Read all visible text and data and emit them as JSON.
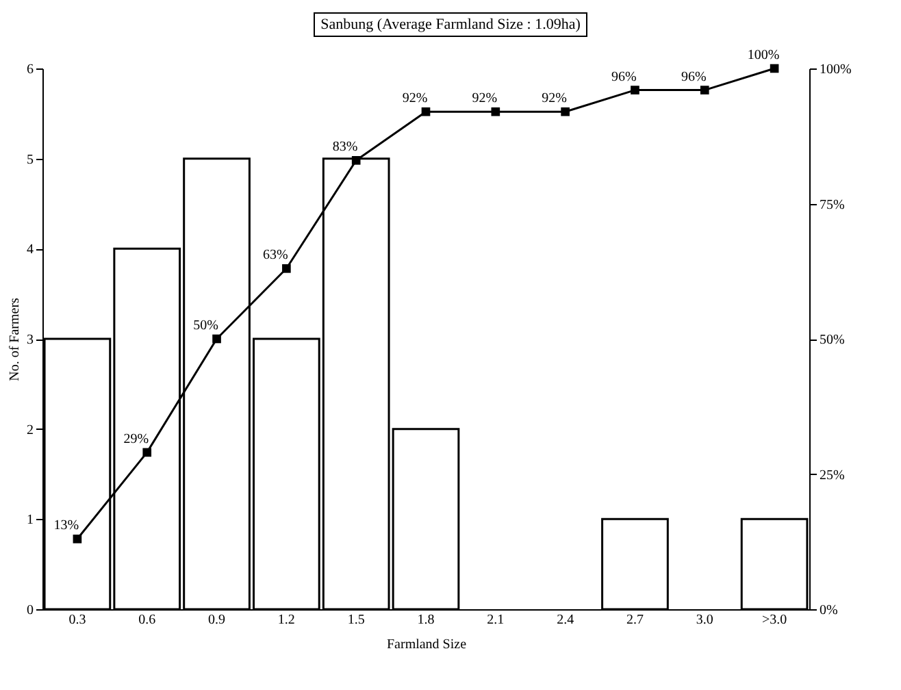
{
  "chart_data": {
    "type": "bar",
    "title": "Sanbung (Average Farmland Size : 1.09ha)",
    "xlabel": "Farmland Size",
    "ylabel": "No. of Farmers",
    "categories": [
      "0.3",
      "0.6",
      "0.9",
      "1.2",
      "1.5",
      "1.8",
      "2.1",
      "2.4",
      "2.7",
      "3.0",
      ">3.0"
    ],
    "series": [
      {
        "color": "#ffffff",
        "values": [
          3,
          4,
          5,
          3,
          5,
          2,
          0,
          0,
          1,
          0,
          1
        ]
      },
      {
        "type": "line",
        "axis": "y2",
        "color": "#000000",
        "marker": "square",
        "values": [
          13,
          29,
          50,
          63,
          83,
          92,
          92,
          92,
          96,
          96,
          100
        ],
        "value_labels": [
          "13%",
          "29%",
          "50%",
          "63%",
          "83%",
          "92%",
          "92%",
          "92%",
          "96%",
          "96%",
          "100%"
        ]
      }
    ],
    "ylim": [
      0,
      6
    ],
    "yticks": [
      0,
      1,
      2,
      3,
      4,
      5,
      6
    ],
    "y2lim": [
      0,
      100
    ],
    "y2ticks": [
      {
        "value": 0,
        "label": "0%"
      },
      {
        "value": 25,
        "label": "25%"
      },
      {
        "value": 50,
        "label": "50%"
      },
      {
        "value": 75,
        "label": "75%"
      },
      {
        "value": 100,
        "label": "100%"
      }
    ],
    "grid": false
  }
}
